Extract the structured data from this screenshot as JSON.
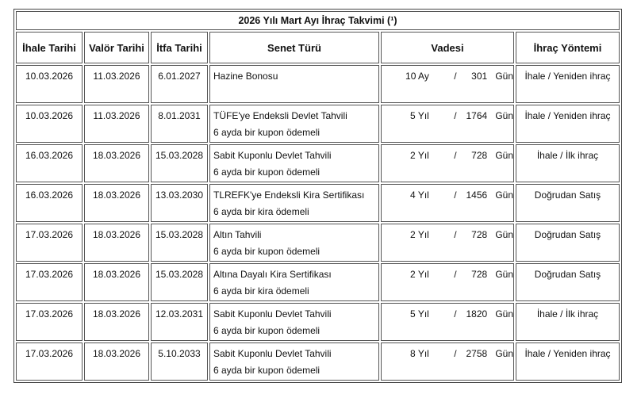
{
  "title": "2026 Yılı Mart Ayı İhraç Takvimi (¹)",
  "headers": [
    "İhale Tarihi",
    "Valör Tarihi",
    "İtfa Tarihi",
    "Senet Türü",
    "Vadesi",
    "İhraç Yöntemi"
  ],
  "rows": [
    {
      "ihale": "10.03.2026",
      "valor": "11.03.2026",
      "itfa": "6.01.2027",
      "senet": [
        "Hazine Bonosu"
      ],
      "term": "10 Ay",
      "sep": "/",
      "days": 301,
      "unit": "Gün",
      "method": "İhale / Yeniden ihraç"
    },
    {
      "ihale": "10.03.2026",
      "valor": "11.03.2026",
      "itfa": "8.01.2031",
      "senet": [
        "TÜFE'ye Endeksli Devlet Tahvili",
        "6 ayda bir kupon ödemeli"
      ],
      "term": "5 Yıl",
      "sep": "/",
      "days": 1764,
      "unit": "Gün",
      "method": "İhale / Yeniden ihraç"
    },
    {
      "ihale": "16.03.2026",
      "valor": "18.03.2026",
      "itfa": "15.03.2028",
      "senet": [
        "Sabit Kuponlu Devlet Tahvili",
        "6 ayda bir kupon ödemeli"
      ],
      "term": "2 Yıl",
      "sep": "/",
      "days": 728,
      "unit": "Gün",
      "method": "İhale / İlk ihraç"
    },
    {
      "ihale": "16.03.2026",
      "valor": "18.03.2026",
      "itfa": "13.03.2030",
      "senet": [
        "TLREFK'ye Endeksli Kira Sertifikası",
        "6 ayda bir kira ödemeli"
      ],
      "term": "4 Yıl",
      "sep": "/",
      "days": 1456,
      "unit": "Gün",
      "method": "Doğrudan Satış"
    },
    {
      "ihale": "17.03.2026",
      "valor": "18.03.2026",
      "itfa": "15.03.2028",
      "senet": [
        "Altın Tahvili",
        "6 ayda bir kupon ödemeli"
      ],
      "term": "2 Yıl",
      "sep": "/",
      "days": 728,
      "unit": "Gün",
      "method": "Doğrudan Satış"
    },
    {
      "ihale": "17.03.2026",
      "valor": "18.03.2026",
      "itfa": "15.03.2028",
      "senet": [
        "Altına Dayalı Kira Sertifikası",
        "6 ayda bir kira ödemeli"
      ],
      "term": "2 Yıl",
      "sep": "/",
      "days": 728,
      "unit": "Gün",
      "method": "Doğrudan Satış"
    },
    {
      "ihale": "17.03.2026",
      "valor": "18.03.2026",
      "itfa": "12.03.2031",
      "senet": [
        "Sabit Kuponlu Devlet Tahvili",
        "6 ayda bir kupon ödemeli"
      ],
      "term": "5 Yıl",
      "sep": "/",
      "days": 1820,
      "unit": "Gün",
      "method": "İhale / İlk ihraç"
    },
    {
      "ihale": "17.03.2026",
      "valor": "18.03.2026",
      "itfa": "5.10.2033",
      "senet": [
        "Sabit Kuponlu Devlet Tahvili",
        "6 ayda bir kupon ödemeli"
      ],
      "term": "8 Yıl",
      "sep": "/",
      "days": 2758,
      "unit": "Gün",
      "method": "İhale / Yeniden ihraç"
    }
  ]
}
